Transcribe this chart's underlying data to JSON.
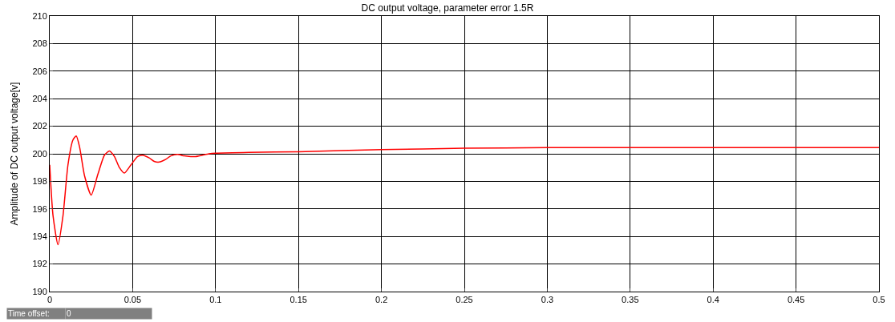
{
  "chart_data": {
    "type": "line",
    "title": "DC output voltage, parameter error 1.5R",
    "ylabel": "Amplitude of DC output voltage[v]",
    "x": [
      0,
      0.002,
      0.005,
      0.008,
      0.011,
      0.014,
      0.016,
      0.018,
      0.021,
      0.025,
      0.029,
      0.033,
      0.036,
      0.039,
      0.042,
      0.045,
      0.049,
      0.053,
      0.056,
      0.06,
      0.063,
      0.066,
      0.07,
      0.073,
      0.077,
      0.081,
      0.085,
      0.088,
      0.092,
      0.096,
      0.1,
      0.12,
      0.15,
      0.2,
      0.25,
      0.3,
      0.35,
      0.4,
      0.45,
      0.5
    ],
    "series": [
      {
        "color": "#ff0000",
        "values": [
          199.2,
          195.5,
          193.4,
          195.5,
          199.2,
          201.0,
          201.3,
          200.5,
          198.4,
          197.0,
          198.5,
          199.9,
          200.2,
          199.8,
          199.0,
          198.6,
          199.2,
          199.8,
          199.9,
          199.7,
          199.45,
          199.4,
          199.6,
          199.85,
          199.95,
          199.85,
          199.8,
          199.8,
          199.9,
          200.0,
          200.05,
          200.1,
          200.15,
          200.3,
          200.4,
          200.45,
          200.45,
          200.45,
          200.45,
          200.45
        ]
      }
    ],
    "xlim": [
      0,
      0.5
    ],
    "xticks": [
      0,
      0.05,
      0.1,
      0.15,
      0.2,
      0.25,
      0.3,
      0.35,
      0.4,
      0.45,
      0.5
    ],
    "ylim": [
      190,
      210
    ],
    "yticks": [
      190,
      192,
      194,
      196,
      198,
      200,
      202,
      204,
      206,
      208,
      210
    ],
    "grid": true,
    "marker": "none",
    "line_style": "solid",
    "annotations": [
      "Time offset:",
      "0"
    ]
  }
}
